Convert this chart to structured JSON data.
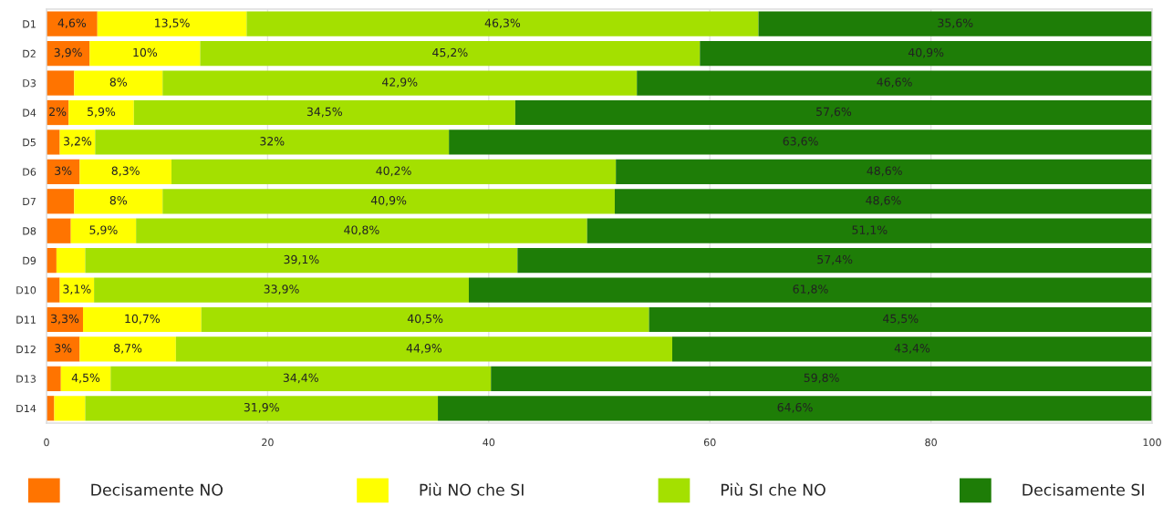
{
  "chart_data": {
    "type": "bar",
    "orientation": "horizontal",
    "stacked": true,
    "categories": [
      "D1",
      "D2",
      "D3",
      "D4",
      "D5",
      "D6",
      "D7",
      "D8",
      "D9",
      "D10",
      "D11",
      "D12",
      "D13",
      "D14"
    ],
    "series": [
      {
        "name": "Decisamente NO",
        "color": "#ff7400",
        "values": [
          4.6,
          3.9,
          2.5,
          2,
          1.2,
          3,
          2.5,
          2.2,
          0.9,
          1.2,
          3.3,
          3,
          1.3,
          0.7
        ],
        "value_labels": [
          "4,6%",
          "3,9%",
          null,
          "2%",
          null,
          "3%",
          null,
          null,
          null,
          null,
          "3,3%",
          "3%",
          null,
          null
        ]
      },
      {
        "name": "Più NO che SI",
        "color": "#ffff00",
        "values": [
          13.5,
          10,
          8,
          5.9,
          3.2,
          8.3,
          8,
          5.9,
          2.6,
          3.1,
          10.7,
          8.7,
          4.5,
          2.8
        ],
        "value_labels": [
          "13,5%",
          "10%",
          "8%",
          "5,9%",
          "3,2%",
          "8,3%",
          "8%",
          "5,9%",
          null,
          "3,1%",
          "10,7%",
          "8,7%",
          "4,5%",
          null
        ]
      },
      {
        "name": "Più SI che NO",
        "color": "#a4e000",
        "values": [
          46.3,
          45.2,
          42.9,
          34.5,
          32,
          40.2,
          40.9,
          40.8,
          39.1,
          33.9,
          40.5,
          44.9,
          34.4,
          31.9
        ],
        "value_labels": [
          "46,3%",
          "45,2%",
          "42,9%",
          "34,5%",
          "32%",
          "40,2%",
          "40,9%",
          "40,8%",
          "39,1%",
          "33,9%",
          "40,5%",
          "44,9%",
          "34,4%",
          "31,9%"
        ]
      },
      {
        "name": "Decisamente SI",
        "color": "#1e7d07",
        "values": [
          35.6,
          40.9,
          46.6,
          57.6,
          63.6,
          48.6,
          48.6,
          51.1,
          57.4,
          61.8,
          45.5,
          43.4,
          59.8,
          64.6
        ],
        "value_labels": [
          "35,6%",
          "40,9%",
          "46,6%",
          "57,6%",
          "63,6%",
          "48,6%",
          "48,6%",
          "51,1%",
          "57,4%",
          "61,8%",
          "45,5%",
          "43,4%",
          "59,8%",
          "64,6%"
        ]
      }
    ],
    "xlim": [
      0,
      100
    ],
    "xticks": [
      0,
      20,
      40,
      60,
      80,
      100
    ],
    "grid": "x",
    "legend": "bottom"
  }
}
